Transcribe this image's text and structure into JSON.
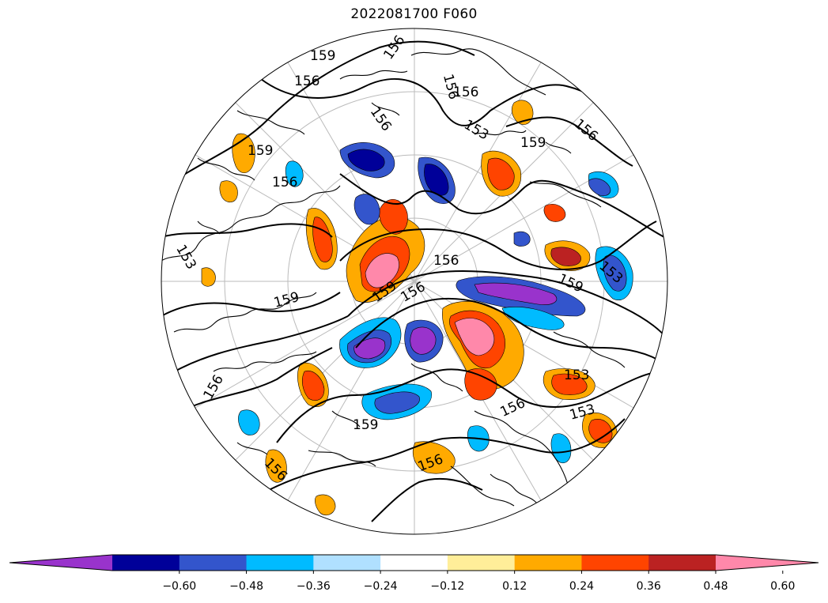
{
  "title": "2022081700 F060",
  "colorbar": {
    "colors": [
      "#9933cc",
      "#000099",
      "#3355cc",
      "#00bbff",
      "#b0e0ff",
      "#ffffff",
      "#ffee99",
      "#ffaa00",
      "#ff4400",
      "#bb2222",
      "#ff88aa"
    ],
    "ticks": [
      "−0.60",
      "−0.48",
      "−0.36",
      "−0.24",
      "−0.12",
      "0.12",
      "0.24",
      "0.36",
      "0.48",
      "0.60"
    ],
    "extend": "both"
  },
  "contour_labels": [
    "159",
    "156",
    "156",
    "156",
    "156",
    "153",
    "159",
    "156",
    "159",
    "156",
    "153",
    "156",
    "156",
    "159",
    "156",
    "159",
    "159",
    "153",
    "153",
    "159",
    "156",
    "156",
    "156",
    "153",
    "156"
  ]
}
